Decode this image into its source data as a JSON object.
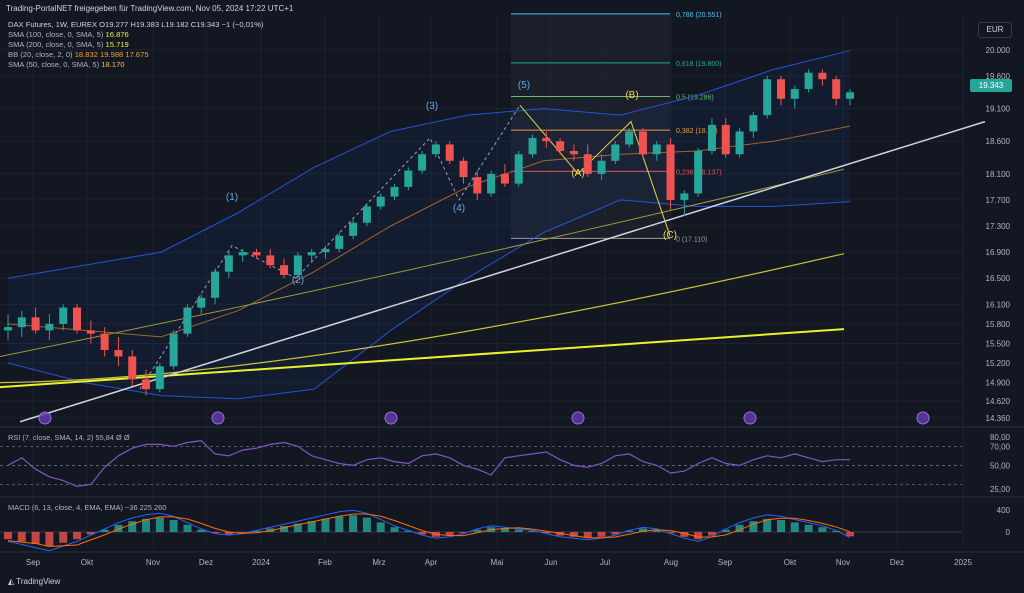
{
  "header": {
    "title": "Trading-PortalNET freigegeben für TradingView.com, Nov 05, 2024 17:22 UTC+1"
  },
  "legend": {
    "symbol_line": "DAX Futures, 1W, EUREX  O19.277  H19.383  L19.182  C19.343  −1 (−0,01%)",
    "indicators": [
      {
        "label": "SMA (100, close, 0, SMA, 5)",
        "value": "16.876",
        "color": "#f5f530"
      },
      {
        "label": "SMA (200, close, 0, SMA, 5)",
        "value": "15.719",
        "color": "#f5f530"
      },
      {
        "label": "BB (20, close, 2, 0)",
        "value": "18.832  19.988  17.675",
        "color": "#f2a030"
      },
      {
        "label": "SMA (50, close, 0, SMA, 5)",
        "value": "18.170",
        "color": "#f5c542"
      }
    ]
  },
  "currency": "EUR",
  "last_price": "19.343",
  "rsi_label": "RSI (7, close, SMA, 14, 2)  55,84  Ø  Ø",
  "macd_label": "MACD (6, 13, close, 4, EMA, EMA)  −36  225  260",
  "branding": "TradingView",
  "colors": {
    "up": "#26a69a",
    "down": "#ef5350",
    "bg": "#131722",
    "sma100": "#c9c23a",
    "sma200": "#e8f32a",
    "bb_mid": "#a0662a",
    "bb_band": "#2962ff",
    "sma50": "#9a9a3a",
    "trendline": "#d1d4dc",
    "fib": "#8aa8a0"
  },
  "chart_data": {
    "type": "candlestick",
    "y_axis_ticks": [
      "20.000",
      "19.600",
      "19.100",
      "18.600",
      "18.100",
      "17.700",
      "17.300",
      "16.900",
      "16.500",
      "16.100",
      "15.800",
      "15.500",
      "15.200",
      "14.900",
      "14.620",
      "14.360"
    ],
    "x_axis_ticks": [
      "Sep",
      "Okt",
      "Nov",
      "Dez",
      "2024",
      "Feb",
      "Mrz",
      "Apr",
      "Mai",
      "Jun",
      "Jul",
      "Aug",
      "Sep",
      "Okt",
      "Nov",
      "Dez",
      "2025"
    ],
    "ohlc": [
      [
        15700,
        15950,
        15550,
        15750
      ],
      [
        15750,
        16000,
        15600,
        15900
      ],
      [
        15900,
        16050,
        15650,
        15700
      ],
      [
        15700,
        15950,
        15550,
        15800
      ],
      [
        15800,
        16100,
        15700,
        16050
      ],
      [
        16050,
        16100,
        15650,
        15700
      ],
      [
        15700,
        15850,
        15500,
        15650
      ],
      [
        15650,
        15750,
        15300,
        15400
      ],
      [
        15400,
        15600,
        15150,
        15300
      ],
      [
        15300,
        15400,
        14850,
        14950
      ],
      [
        14950,
        15100,
        14700,
        14800
      ],
      [
        14800,
        15200,
        14750,
        15150
      ],
      [
        15150,
        15700,
        15100,
        15650
      ],
      [
        15650,
        16100,
        15600,
        16050
      ],
      [
        16050,
        16250,
        15950,
        16200
      ],
      [
        16200,
        16650,
        16100,
        16600
      ],
      [
        16600,
        16900,
        16500,
        16850
      ],
      [
        16850,
        16950,
        16750,
        16900
      ],
      [
        16900,
        16950,
        16800,
        16850
      ],
      [
        16850,
        16950,
        16650,
        16700
      ],
      [
        16700,
        16800,
        16500,
        16550
      ],
      [
        16550,
        16900,
        16500,
        16850
      ],
      [
        16850,
        16950,
        16750,
        16900
      ],
      [
        16900,
        17000,
        16800,
        16950
      ],
      [
        16950,
        17200,
        16900,
        17150
      ],
      [
        17150,
        17400,
        17100,
        17350
      ],
      [
        17350,
        17650,
        17300,
        17600
      ],
      [
        17600,
        17800,
        17550,
        17750
      ],
      [
        17750,
        17950,
        17700,
        17900
      ],
      [
        17900,
        18200,
        17850,
        18150
      ],
      [
        18150,
        18450,
        18100,
        18400
      ],
      [
        18400,
        18600,
        18350,
        18550
      ],
      [
        18550,
        18600,
        18250,
        18300
      ],
      [
        18300,
        18350,
        17950,
        18050
      ],
      [
        18050,
        18150,
        17700,
        17800
      ],
      [
        17800,
        18150,
        17750,
        18100
      ],
      [
        18100,
        18250,
        17900,
        17950
      ],
      [
        17950,
        18450,
        17900,
        18400
      ],
      [
        18400,
        18700,
        18350,
        18650
      ],
      [
        18650,
        18750,
        18500,
        18600
      ],
      [
        18600,
        18650,
        18400,
        18450
      ],
      [
        18450,
        18550,
        18300,
        18400
      ],
      [
        18400,
        18550,
        18050,
        18100
      ],
      [
        18100,
        18400,
        18000,
        18300
      ],
      [
        18300,
        18600,
        18250,
        18550
      ],
      [
        18550,
        18800,
        18500,
        18750
      ],
      [
        18750,
        18800,
        18350,
        18400
      ],
      [
        18400,
        18600,
        18300,
        18550
      ],
      [
        18550,
        18650,
        17550,
        17700
      ],
      [
        17700,
        17850,
        17450,
        17800
      ],
      [
        17800,
        18500,
        17750,
        18450
      ],
      [
        18450,
        18950,
        18400,
        18850
      ],
      [
        18850,
        18950,
        18350,
        18400
      ],
      [
        18400,
        18800,
        18350,
        18750
      ],
      [
        18750,
        19050,
        18650,
        19000
      ],
      [
        19000,
        19600,
        18950,
        19550
      ],
      [
        19550,
        19600,
        19150,
        19250
      ],
      [
        19250,
        19450,
        19100,
        19400
      ],
      [
        19400,
        19700,
        19350,
        19650
      ],
      [
        19650,
        19700,
        19450,
        19550
      ],
      [
        19550,
        19600,
        19150,
        19250
      ],
      [
        19250,
        19400,
        19150,
        19350
      ]
    ],
    "sma200": {
      "start": 14830,
      "end": 15719
    },
    "sma100": {
      "start": 14900,
      "end": 16876
    },
    "sma50": {
      "start": 15300,
      "end": 18170
    },
    "bb_upper": [
      16500,
      16700,
      16900,
      17500,
      18200,
      18750,
      19000,
      19100,
      19000,
      19300,
      19700,
      19988
    ],
    "bb_lower": [
      15200,
      14900,
      14700,
      14650,
      14800,
      15700,
      16500,
      17200,
      17700,
      17600,
      17600,
      17675
    ],
    "bb_basis": [
      15800,
      15700,
      15600,
      16000,
      16600,
      17300,
      17900,
      18300,
      18400,
      18450,
      18600,
      18832
    ],
    "fib_levels": [
      {
        "label": "0,786 (20.551)",
        "value": 20551
      },
      {
        "label": "0,618 (19.800)",
        "value": 19800
      },
      {
        "label": "0,5 (19.286)",
        "value": 19286
      },
      {
        "label": "0,382 (18.7..)",
        "value": 18770
      },
      {
        "label": "0,236 (18.137)",
        "value": 18137
      },
      {
        "label": "0 (17.110)",
        "value": 17110
      }
    ],
    "wave_labels": [
      "(1)",
      "(2)",
      "(3)",
      "(4)",
      "(5)",
      "(A)",
      "(B)",
      "(C)"
    ],
    "rsi": {
      "ticks": [
        "80,00",
        "70,00",
        "50,00",
        "25,00"
      ],
      "values": [
        50,
        58,
        46,
        38,
        34,
        28,
        30,
        48,
        60,
        68,
        72,
        72,
        70,
        74,
        76,
        62,
        60,
        66,
        68,
        72,
        74,
        70,
        60,
        56,
        52,
        50,
        56,
        58,
        54,
        52,
        60,
        62,
        58,
        50,
        46,
        40,
        58,
        60,
        62,
        64,
        56,
        50,
        48,
        52,
        60,
        62,
        54,
        50,
        42,
        44,
        52,
        58,
        52,
        50,
        56,
        60,
        58,
        62,
        58,
        54,
        56,
        56
      ]
    },
    "macd": {
      "ticks": [
        "400",
        "0"
      ],
      "hist": [
        -60,
        -80,
        -100,
        -120,
        -90,
        -60,
        -20,
        20,
        60,
        90,
        110,
        120,
        100,
        60,
        20,
        -10,
        -20,
        -10,
        10,
        30,
        50,
        70,
        90,
        110,
        130,
        140,
        120,
        80,
        40,
        10,
        -20,
        -40,
        -30,
        -10,
        20,
        40,
        30,
        20,
        10,
        -10,
        -30,
        -40,
        -50,
        -40,
        -20,
        10,
        30,
        20,
        -10,
        -40,
        -60,
        -30,
        20,
        60,
        90,
        110,
        100,
        80,
        60,
        40,
        10,
        -36
      ]
    }
  }
}
